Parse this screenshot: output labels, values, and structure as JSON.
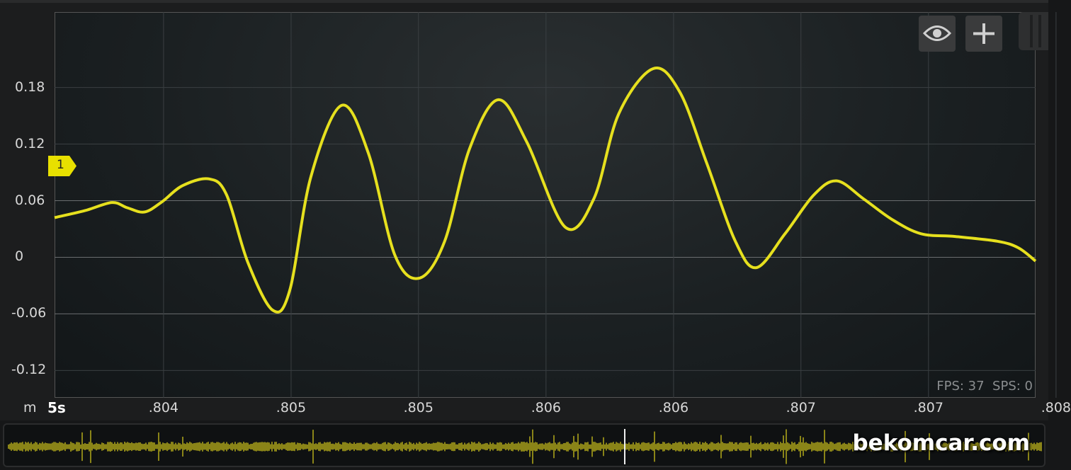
{
  "chart_data": {
    "type": "line",
    "xlim": [
      0.80343,
      0.80856
    ],
    "ylim": [
      -0.149,
      0.26
    ],
    "grid": true,
    "x_unit": "m",
    "time_span": "5s",
    "x_ticks": [
      {
        "value": 0.804,
        "label": ".804"
      },
      {
        "value": 0.804667,
        "label": ".805"
      },
      {
        "value": 0.805333,
        "label": ".805"
      },
      {
        "value": 0.806,
        "label": ".806"
      },
      {
        "value": 0.806667,
        "label": ".806"
      },
      {
        "value": 0.807333,
        "label": ".807"
      },
      {
        "value": 0.808,
        "label": ".807"
      },
      {
        "value": 0.808667,
        "label": ".808"
      }
    ],
    "y_ticks": [
      {
        "value": 0.18,
        "label": "0.18"
      },
      {
        "value": 0.12,
        "label": "0.12"
      },
      {
        "value": 0.06,
        "label": "0.06"
      },
      {
        "value": 0,
        "label": "0"
      },
      {
        "value": -0.06,
        "label": "-0.06"
      },
      {
        "value": -0.12,
        "label": "-0.12"
      }
    ],
    "series": [
      {
        "color": "#e6e01e",
        "x": [
          0.80343,
          0.80359,
          0.80373,
          0.80381,
          0.8039,
          0.80399,
          0.8041,
          0.80424,
          0.80433,
          0.80444,
          0.80457,
          0.80466,
          0.80477,
          0.80493,
          0.80507,
          0.80521,
          0.80534,
          0.80547,
          0.8056,
          0.80575,
          0.8059,
          0.8061,
          0.80625,
          0.80638,
          0.80656,
          0.8067,
          0.80684,
          0.80699,
          0.8071,
          0.80725,
          0.8074,
          0.80752,
          0.80766,
          0.80781,
          0.80796,
          0.80814,
          0.80836,
          0.80847,
          0.80856
        ],
        "y": [
          0.042,
          0.0495,
          0.058,
          0.0525,
          0.048,
          0.0585,
          0.076,
          0.083,
          0.066,
          -0.005,
          -0.056,
          -0.035,
          0.085,
          0.161,
          0.111,
          0.002,
          -0.022,
          0.017,
          0.115,
          0.167,
          0.122,
          0.032,
          0.062,
          0.152,
          0.2,
          0.175,
          0.1,
          0.017,
          -0.011,
          0.025,
          0.066,
          0.081,
          0.062,
          0.04,
          0.025,
          0.022,
          0.017,
          0.01,
          -0.004
        ]
      }
    ],
    "channel_marker": {
      "label": "1",
      "value": 0.097,
      "color": "#e8e000"
    }
  },
  "toolbar": {
    "eye_icon": "eye-icon",
    "plus_icon": "plus-icon"
  },
  "status": {
    "fps": "FPS: 37",
    "sps": "SPS: 0"
  },
  "watermark": "bekomcar.com",
  "colors": {
    "trace": "#e6e01e",
    "overview": "#8a8418",
    "background": "#1c1d1e"
  }
}
